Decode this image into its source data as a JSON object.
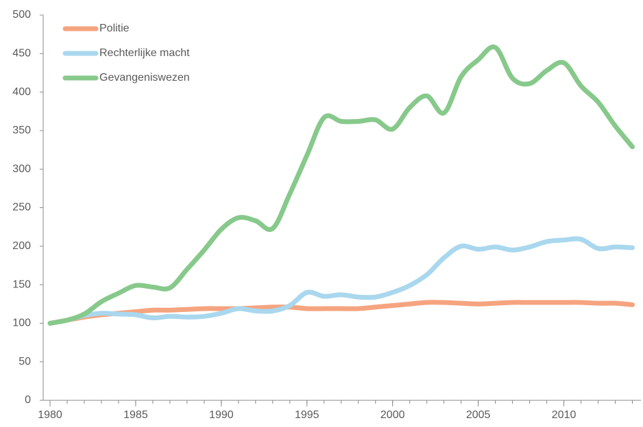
{
  "chart_data": {
    "type": "line",
    "x": [
      1980,
      1981,
      1982,
      1983,
      1984,
      1985,
      1986,
      1987,
      1988,
      1989,
      1990,
      1991,
      1992,
      1993,
      1994,
      1995,
      1996,
      1997,
      1998,
      1999,
      2000,
      2001,
      2002,
      2003,
      2004,
      2005,
      2006,
      2007,
      2008,
      2009,
      2010,
      2011,
      2012,
      2013,
      2014
    ],
    "series": [
      {
        "name": "Politie",
        "color": "#f5a47f",
        "values": [
          100,
          104,
          108,
          111,
          113,
          115,
          117,
          117,
          118,
          119,
          119,
          119,
          120,
          121,
          121,
          119,
          119,
          119,
          119,
          121,
          123,
          125,
          127,
          127,
          126,
          125,
          126,
          127,
          127,
          127,
          127,
          127,
          126,
          126,
          124
        ]
      },
      {
        "name": "Rechterlijke macht",
        "color": "#a9d7ee",
        "values": [
          100,
          104,
          110,
          113,
          112,
          111,
          107,
          109,
          108,
          109,
          113,
          119,
          116,
          116,
          123,
          140,
          135,
          137,
          134,
          134,
          140,
          149,
          163,
          185,
          200,
          196,
          199,
          195,
          199,
          206,
          208,
          209,
          197,
          199,
          198
        ]
      },
      {
        "name": "Gevangeniswezen",
        "color": "#87c98b",
        "values": [
          100,
          104,
          112,
          128,
          139,
          149,
          147,
          146,
          170,
          195,
          222,
          237,
          233,
          223,
          268,
          318,
          367,
          362,
          362,
          364,
          352,
          380,
          395,
          373,
          420,
          442,
          458,
          418,
          411,
          428,
          438,
          408,
          387,
          356,
          329
        ]
      }
    ],
    "xlim": [
      1979.6,
      2014.5
    ],
    "xticks": [
      1980,
      1985,
      1990,
      1995,
      2000,
      2005,
      2010
    ],
    "ylim": [
      0,
      500
    ],
    "yticks": [
      0,
      50,
      100,
      150,
      200,
      250,
      300,
      350,
      400,
      450,
      500
    ],
    "legend": "upper left"
  }
}
